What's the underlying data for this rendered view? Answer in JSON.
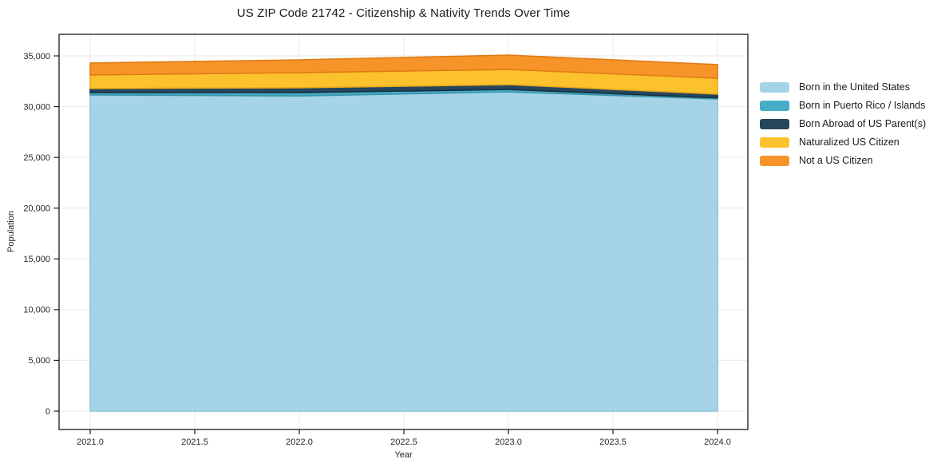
{
  "chart_data": {
    "type": "area",
    "stacked": true,
    "title": "US ZIP Code 21742 - Citizenship & Nativity Trends Over Time",
    "xlabel": "Year",
    "ylabel": "Population",
    "x": [
      2021,
      2022,
      2023,
      2024
    ],
    "series": [
      {
        "name": "Born in the United States",
        "color": "#a5d3e8",
        "edge": "#8ec2dc",
        "values": [
          31150,
          31050,
          31450,
          30750
        ]
      },
      {
        "name": "Born in Puerto Rico / Islands",
        "color": "#46adc6",
        "edge": "#3a95ab",
        "values": [
          230,
          330,
          240,
          120
        ]
      },
      {
        "name": "Born Abroad of US Parent(s)",
        "color": "#25475e",
        "edge": "#182f40",
        "values": [
          400,
          480,
          480,
          360
        ]
      },
      {
        "name": "Naturalized US Citizen",
        "color": "#fcc22d",
        "edge": "#e9a91b",
        "values": [
          1340,
          1490,
          1490,
          1570
        ]
      },
      {
        "name": "Not a US Citizen",
        "color": "#f79429",
        "edge": "#e07c15",
        "values": [
          1180,
          1260,
          1420,
          1340
        ]
      }
    ],
    "x_tick_values": [
      2021.0,
      2021.5,
      2022.0,
      2022.5,
      2023.0,
      2023.5,
      2024.0
    ],
    "x_tick_labels": [
      "2021.0",
      "2021.5",
      "2022.0",
      "2022.5",
      "2023.0",
      "2023.5",
      "2024.0"
    ],
    "y_tick_values": [
      0,
      5000,
      10000,
      15000,
      20000,
      25000,
      30000,
      35000
    ],
    "y_tick_labels": [
      "0",
      "5,000",
      "10,000",
      "15,000",
      "20,000",
      "25,000",
      "30,000",
      "35,000"
    ],
    "ylim": [
      0,
      35000
    ],
    "grid": true,
    "legend_position": "right",
    "grid_color": "#e9e9e9",
    "spine_color": "#1a1a1a",
    "tick_color": "#1a1a1a",
    "label_color": "#262626"
  }
}
